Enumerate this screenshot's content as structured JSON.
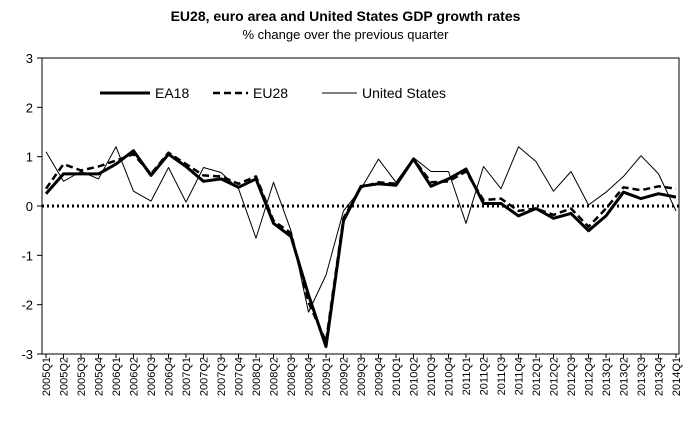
{
  "chart_data": {
    "type": "line",
    "title": "EU28, euro area and United States GDP growth rates",
    "subtitle": "% change over the previous quarter",
    "ylim": [
      -3,
      3
    ],
    "yticks": [
      -3,
      -2,
      -1,
      0,
      1,
      2,
      3
    ],
    "grid": false,
    "legend_position": "top",
    "x": [
      "2005Q1",
      "2005Q2",
      "2005Q3",
      "2005Q4",
      "2006Q1",
      "2006Q2",
      "2006Q3",
      "2006Q4",
      "2007Q1",
      "2007Q2",
      "2007Q3",
      "2007Q4",
      "2008Q1",
      "2008Q2",
      "2008Q3",
      "2008Q4",
      "2009Q1",
      "2009Q2",
      "2009Q3",
      "2009Q4",
      "2010Q1",
      "2010Q2",
      "2010Q3",
      "2010Q4",
      "2011Q1",
      "2011Q2",
      "2011Q3",
      "2011Q4",
      "2012Q1",
      "2012Q2",
      "2012Q3",
      "2012Q4",
      "2013Q1",
      "2013Q2",
      "2013Q3",
      "2013Q4",
      "2014Q1"
    ],
    "series": [
      {
        "name": "EA18",
        "style": "thick-solid",
        "values": [
          0.25,
          0.65,
          0.65,
          0.65,
          0.85,
          1.12,
          0.62,
          1.05,
          0.8,
          0.5,
          0.55,
          0.38,
          0.55,
          -0.35,
          -0.62,
          -1.8,
          -2.85,
          -0.3,
          0.4,
          0.45,
          0.42,
          0.95,
          0.4,
          0.55,
          0.75,
          0.05,
          0.05,
          -0.2,
          -0.05,
          -0.25,
          -0.15,
          -0.5,
          -0.2,
          0.28,
          0.15,
          0.25,
          0.18
        ]
      },
      {
        "name": "EU28",
        "style": "dashed",
        "values": [
          0.35,
          0.85,
          0.72,
          0.8,
          0.92,
          1.05,
          0.65,
          1.08,
          0.85,
          0.62,
          0.6,
          0.45,
          0.6,
          -0.3,
          -0.55,
          -1.95,
          -2.75,
          -0.25,
          0.38,
          0.48,
          0.45,
          0.95,
          0.48,
          0.5,
          0.7,
          0.12,
          0.15,
          -0.1,
          -0.05,
          -0.18,
          -0.05,
          -0.42,
          -0.05,
          0.38,
          0.32,
          0.4,
          0.35
        ]
      },
      {
        "name": "United States",
        "style": "thin-solid",
        "values": [
          1.1,
          0.5,
          0.7,
          0.55,
          1.2,
          0.3,
          0.1,
          0.78,
          0.08,
          0.78,
          0.68,
          0.35,
          -0.65,
          0.48,
          -0.5,
          -2.15,
          -1.4,
          -0.1,
          0.35,
          0.95,
          0.48,
          0.98,
          0.7,
          0.7,
          -0.35,
          0.8,
          0.35,
          1.2,
          0.9,
          0.3,
          0.7,
          0.02,
          0.28,
          0.6,
          1.02,
          0.65,
          -0.1
        ]
      }
    ]
  }
}
